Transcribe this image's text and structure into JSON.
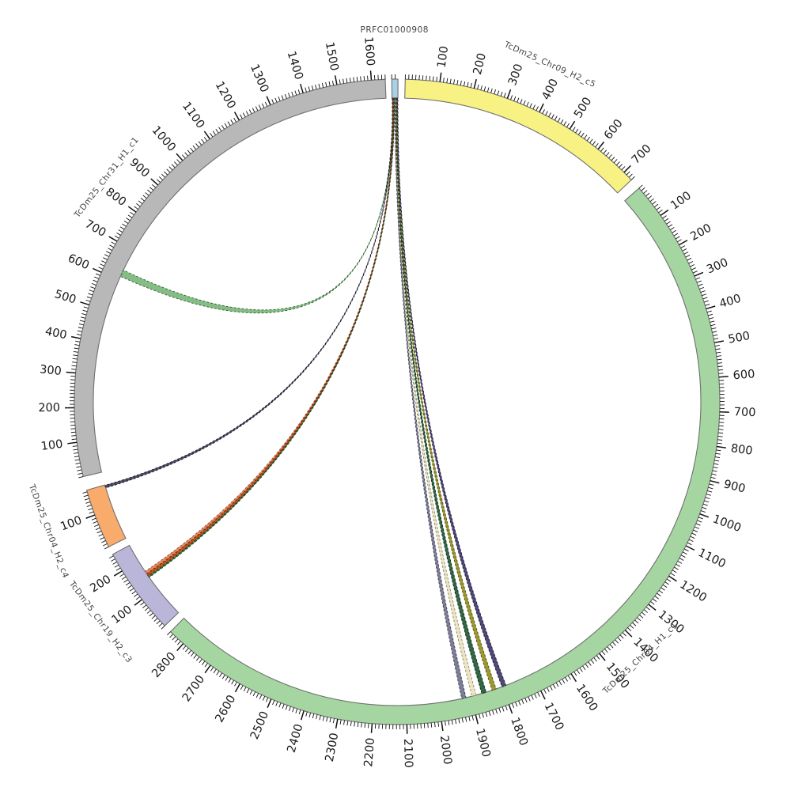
{
  "chart_data": {
    "type": "circos",
    "title": "PRFC01000908",
    "scale_units_per_degree": 16.19,
    "tick_minor_interval": 10,
    "tick_major_interval": 100,
    "background": "#ffffff",
    "band_stroke": "#6f6f6f",
    "tick_color": "#111111",
    "segments": [
      {
        "id": "prfc01000908",
        "label": "PRFC01000908",
        "length": 18,
        "start_angle": -0.95,
        "color": "#a9d0e8",
        "label_style": "horizontal-top",
        "label_angle": -0.4,
        "label_radius": 470,
        "tick_labels": [],
        "unlabeled_major_ticks": [
          12
        ]
      },
      {
        "id": "chr09_h2_c5",
        "label": "TcDm25_Chr09_H2_c5",
        "length": 730,
        "start_angle": 1.45,
        "color": "#f8f285",
        "label_angle": 24.4,
        "label_radius": 468,
        "tick_labels": [
          100,
          200,
          300,
          400,
          500,
          600,
          700
        ],
        "unlabeled_major_ticks": []
      },
      {
        "id": "chr04_h1_c1",
        "label": "TcDm25_Chr04_H1_c1",
        "length": 2850,
        "start_angle": 48.55,
        "color": "#a5d6a2",
        "label_angle": 136.5,
        "label_radius": 447,
        "tick_labels": [
          100,
          200,
          300,
          400,
          500,
          600,
          700,
          800,
          900,
          1000,
          1100,
          1200,
          1300,
          1400,
          1500,
          1600,
          1700,
          1800,
          1900,
          2000,
          2100,
          2200,
          2300,
          2400,
          2500,
          2600,
          2700,
          2800
        ],
        "unlabeled_major_ticks": []
      },
      {
        "id": "chr19_h2_c3",
        "label": "TcDm25_Chr19_H2_c3",
        "length": 255,
        "start_angle": 226.05,
        "color": "#b9b6da",
        "label_angle": 233.4,
        "label_radius": 467,
        "tick_labels": [
          100,
          200
        ],
        "unlabeled_major_ticks": []
      },
      {
        "id": "chr04_h2_c4",
        "label": "TcDm25_Chr04_H2_c4",
        "length": 175,
        "start_angle": 243.3,
        "color": "#f8ab6b",
        "label_angle": 249.6,
        "label_radius": 470,
        "tick_labels": [
          100
        ],
        "unlabeled_major_ticks": []
      },
      {
        "id": "chr31_h1_c1",
        "label": "TcDm25_Chr31_H1_c1",
        "length": 1640,
        "start_angle": 256.6,
        "color": "#b8b8b8",
        "label_angle": 307.7,
        "label_radius": 464,
        "tick_labels": [
          100,
          200,
          300,
          400,
          500,
          600,
          700,
          800,
          900,
          1000,
          1100,
          1200,
          1300,
          1400,
          1500,
          1600
        ],
        "unlabeled_major_ticks": []
      }
    ],
    "links": [
      {
        "name": "link-to-chr31",
        "source": {
          "segment": "prfc01000908",
          "start": 0.3,
          "end": 2.3
        },
        "target": {
          "segment": "chr31_h1_c1",
          "start": 612,
          "end": 633
        },
        "fill": "#86bd86",
        "stroke": "#2c5c2c"
      },
      {
        "name": "link-to-chr04h2",
        "source": {
          "segment": "prfc01000908",
          "start": 1.8,
          "end": 3.8
        },
        "target": {
          "segment": "chr04_h2_c4",
          "start": 166,
          "end": 174
        },
        "fill": "#4a4a62",
        "stroke": "#17172a"
      },
      {
        "name": "link-to-chr19-salmon",
        "source": {
          "segment": "prfc01000908",
          "start": 3.4,
          "end": 4.6
        },
        "target": {
          "segment": "chr19_h2_c3",
          "start": 154,
          "end": 162
        },
        "fill": "#df8a6a",
        "stroke": "#9c4524"
      },
      {
        "name": "link-to-chr19-red",
        "source": {
          "segment": "prfc01000908",
          "start": 4.4,
          "end": 6.2
        },
        "target": {
          "segment": "chr19_h2_c3",
          "start": 145,
          "end": 153
        },
        "fill": "#bc5117",
        "stroke": "#6e2506"
      },
      {
        "name": "link-to-chr19-green",
        "source": {
          "segment": "prfc01000908",
          "start": 6.2,
          "end": 7.2
        },
        "target": {
          "segment": "chr19_h2_c3",
          "start": 140,
          "end": 144
        },
        "fill": "#3d7a45",
        "stroke": "#1d4423"
      },
      {
        "name": "link-to-chr04h1-slate",
        "source": {
          "segment": "prfc01000908",
          "start": 7.8,
          "end": 9.8
        },
        "target": {
          "segment": "chr04_h1_c1",
          "start": 1916,
          "end": 1929
        },
        "fill": "#7d7d96",
        "stroke": "#3a3a50"
      },
      {
        "name": "link-to-chr04h1-cream",
        "source": {
          "segment": "prfc01000908",
          "start": 9.8,
          "end": 11.8
        },
        "target": {
          "segment": "chr04_h1_c1",
          "start": 1884,
          "end": 1897
        },
        "fill": "#ece5c3",
        "stroke": "#8a8468"
      },
      {
        "name": "link-to-chr04h1-darkgreen",
        "source": {
          "segment": "prfc01000908",
          "start": 11.8,
          "end": 13.8
        },
        "target": {
          "segment": "chr04_h1_c1",
          "start": 1852,
          "end": 1866
        },
        "fill": "#336645",
        "stroke": "#0d2d17"
      },
      {
        "name": "link-to-chr04h1-olive",
        "source": {
          "segment": "prfc01000908",
          "start": 13.8,
          "end": 15.8
        },
        "target": {
          "segment": "chr04_h1_c1",
          "start": 1820,
          "end": 1833
        },
        "fill": "#9b9733",
        "stroke": "#4f4d10"
      },
      {
        "name": "link-to-chr04h1-darkpurple",
        "source": {
          "segment": "prfc01000908",
          "start": 15.8,
          "end": 17.8
        },
        "target": {
          "segment": "chr04_h1_c1",
          "start": 1788,
          "end": 1801
        },
        "fill": "#4e4874",
        "stroke": "#1f1b3a"
      }
    ]
  }
}
